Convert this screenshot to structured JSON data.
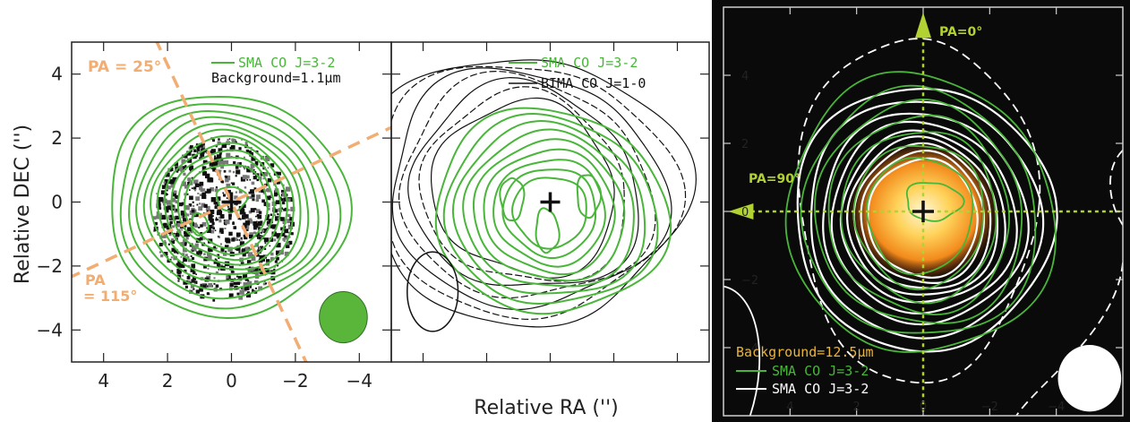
{
  "colors": {
    "sma_green": "#49b63a",
    "bima_black": "#111111",
    "pa_orange": "#f2ad72",
    "dark_bg": "#0a0a0a",
    "white_contour": "#ffffff",
    "guide_yellowgreen": "#b2d233",
    "background_label": "#e9b53a",
    "beam_green": "#59b63b"
  },
  "axes": {
    "ylabel": "Relative DEC ('')",
    "xlabel": "Relative RA ('')"
  },
  "chart_data": [
    {
      "type": "contour",
      "panel": "left",
      "xlim": [
        5,
        -5
      ],
      "ylim": [
        -5,
        5
      ],
      "xticks": [
        4,
        2,
        0,
        -2,
        -4
      ],
      "yticks": [
        4,
        2,
        0,
        -2,
        -4
      ],
      "legend": [
        {
          "label": "SMA CO J=3-2",
          "color": "#49b63a",
          "style": "line"
        },
        {
          "label": "Background=1.1μm",
          "color": "#111111",
          "style": "text"
        }
      ],
      "annotations": [
        "PA = 25°",
        "PA = 115°"
      ],
      "series": [
        {
          "name": "SMA CO J=3-2",
          "contour_radii_arcsec": [
            3.6,
            3.3,
            3.0,
            2.75,
            2.5,
            2.3,
            2.1,
            1.9,
            1.7,
            1.5,
            1.3
          ]
        }
      ],
      "center": [
        0,
        0
      ],
      "beam": {
        "x": -3.5,
        "y": -3.6,
        "major": 1.6,
        "minor": 1.5
      }
    },
    {
      "type": "contour",
      "panel": "middle",
      "xlim": [
        5,
        -5
      ],
      "ylim": [
        -5,
        5
      ],
      "legend": [
        {
          "label": "SMA CO J=3-2",
          "color": "#49b63a",
          "style": "line"
        },
        {
          "label": "BIMA CO J=1-0",
          "color": "#111111",
          "style": "line"
        }
      ],
      "series": [
        {
          "name": "SMA CO J=3-2",
          "contour_radii_arcsec": [
            3.6,
            3.3,
            3.0,
            2.7,
            2.4,
            2.1,
            1.8,
            1.5,
            1.2
          ]
        },
        {
          "name": "BIMA CO J=1-0",
          "contour_radii_arcsec": [
            4.6,
            4.3,
            4.0,
            3.7,
            3.4,
            3.1,
            2.8
          ]
        }
      ],
      "center": [
        0,
        0
      ],
      "beam": {
        "x": 3.7,
        "y": -2.8,
        "major": 2.5,
        "minor": 1.6
      }
    },
    {
      "type": "contour",
      "panel": "right",
      "xlim": [
        6,
        -6
      ],
      "ylim": [
        -6,
        6
      ],
      "xticks": [
        4,
        2,
        0,
        -2,
        -4
      ],
      "yticks": [
        4,
        2,
        0,
        -2,
        -4
      ],
      "legend": [
        {
          "label": "Background=12.5μm",
          "color": "#e9b53a",
          "style": "text"
        },
        {
          "label": "SMA CO J=3-2",
          "color": "#49b63a",
          "style": "line"
        },
        {
          "label": "SMA CO J=3-2",
          "color": "#ffffff",
          "style": "line"
        }
      ],
      "annotations": [
        "PA=0°",
        "PA=90°"
      ],
      "series": [
        {
          "name": "SMA CO J=3-2 (green)",
          "contour_radii_arcsec": [
            4.2,
            3.7,
            3.3,
            2.9,
            2.5,
            2.1,
            1.7
          ]
        },
        {
          "name": "SMA CO J=3-2 (white)",
          "contour_radii_arcsec": [
            3.9,
            3.5,
            3.1,
            2.8,
            2.5,
            2.3,
            2.1,
            1.9,
            1.7
          ]
        }
      ],
      "center": [
        0,
        0
      ],
      "beam": {
        "x": -5.0,
        "y": -4.9,
        "major": 2.0,
        "minor": 1.9
      }
    }
  ]
}
